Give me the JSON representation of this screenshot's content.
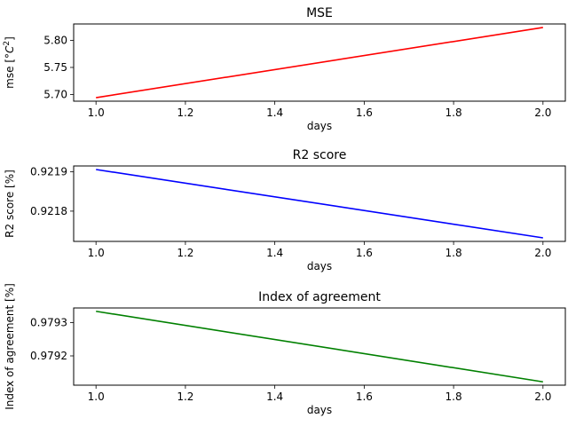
{
  "chart_data": [
    {
      "type": "line",
      "title": "MSE",
      "xlabel": "days",
      "ylabel": "mse [",
      "ylabel_unit_symbol": "°C",
      "ylabel_unit_power": "2",
      "ylabel_close": "]",
      "x": [
        1.0,
        2.0
      ],
      "series": [
        {
          "values": [
            5.694,
            5.824
          ],
          "color": "#ff0000"
        }
      ],
      "xlim": [
        0.95,
        2.05
      ],
      "ylim": [
        5.6875,
        5.8305
      ],
      "xticks": [
        1.0,
        1.2,
        1.4,
        1.6,
        1.8,
        2.0
      ],
      "xtick_labels": [
        "1.0",
        "1.2",
        "1.4",
        "1.6",
        "1.8",
        "2.0"
      ],
      "yticks": [
        5.7,
        5.75,
        5.8
      ],
      "ytick_labels": [
        "5.70",
        "5.75",
        "5.80"
      ],
      "grid": false
    },
    {
      "type": "line",
      "title": "R2 score",
      "xlabel": "days",
      "ylabel": "R2 score [%]",
      "x": [
        1.0,
        2.0
      ],
      "series": [
        {
          "values": [
            0.921906,
            0.921732
          ],
          "color": "#0000ff"
        }
      ],
      "xlim": [
        0.95,
        2.05
      ],
      "ylim": [
        0.921723,
        0.921915
      ],
      "xticks": [
        1.0,
        1.2,
        1.4,
        1.6,
        1.8,
        2.0
      ],
      "xtick_labels": [
        "1.0",
        "1.2",
        "1.4",
        "1.6",
        "1.8",
        "2.0"
      ],
      "yticks": [
        0.9218,
        0.9219
      ],
      "ytick_labels": [
        "0.9218",
        "0.9219"
      ],
      "grid": false
    },
    {
      "type": "line",
      "title": "Index of agreement",
      "xlabel": "days",
      "ylabel": "Index of agreement [%]",
      "x": [
        1.0,
        2.0
      ],
      "series": [
        {
          "values": [
            0.979334,
            0.979122
          ],
          "color": "#008000"
        }
      ],
      "xlim": [
        0.95,
        2.05
      ],
      "ylim": [
        0.979112,
        0.979344
      ],
      "xticks": [
        1.0,
        1.2,
        1.4,
        1.6,
        1.8,
        2.0
      ],
      "xtick_labels": [
        "1.0",
        "1.2",
        "1.4",
        "1.6",
        "1.8",
        "2.0"
      ],
      "yticks": [
        0.9792,
        0.9793
      ],
      "ytick_labels": [
        "0.9792",
        "0.9793"
      ],
      "grid": false
    }
  ]
}
